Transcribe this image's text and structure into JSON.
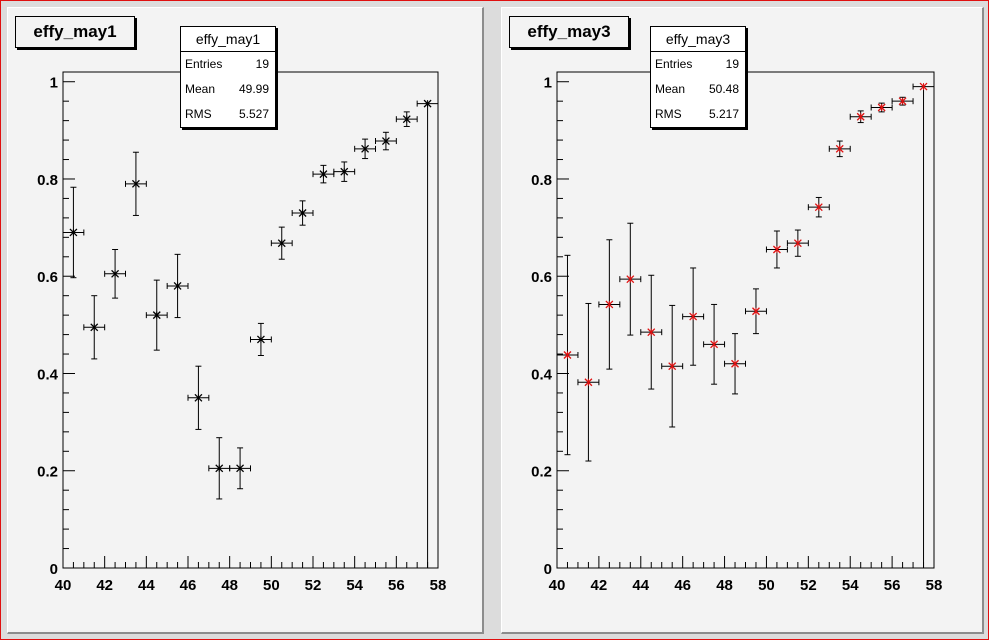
{
  "chart_data": [
    {
      "type": "scatter",
      "title": "effy_may1",
      "stats": {
        "title": "effy_may1",
        "rows": [
          {
            "key": "Entries",
            "value": "19"
          },
          {
            "key": "Mean",
            "value": "49.99"
          },
          {
            "key": "RMS",
            "value": "5.527"
          }
        ]
      },
      "xlim": [
        40,
        58
      ],
      "ylim": [
        0,
        1.02
      ],
      "x_ticks": [
        "40",
        "42",
        "44",
        "46",
        "48",
        "50",
        "52",
        "54",
        "56",
        "58"
      ],
      "y_ticks": [
        "0",
        "0.2",
        "0.4",
        "0.6",
        "0.8",
        "1"
      ],
      "marker_color": "#000000",
      "x_err": 0.5,
      "x": [
        40.5,
        41.5,
        42.5,
        43.5,
        44.5,
        45.5,
        46.5,
        47.5,
        48.5,
        49.5,
        50.5,
        51.5,
        52.5,
        53.5,
        54.5,
        55.5,
        56.5,
        57.5
      ],
      "y": [
        0.69,
        0.495,
        0.605,
        0.79,
        0.52,
        0.58,
        0.35,
        0.205,
        0.205,
        0.47,
        0.668,
        0.73,
        0.81,
        0.815,
        0.862,
        0.878,
        0.923,
        0.955
      ],
      "y_err": [
        0.093,
        0.065,
        0.05,
        0.065,
        0.072,
        0.065,
        0.065,
        0.063,
        0.042,
        0.033,
        0.033,
        0.025,
        0.018,
        0.02,
        0.02,
        0.018,
        0.015,
        0.0
      ]
    },
    {
      "type": "scatter",
      "title": "effy_may3",
      "stats": {
        "title": "effy_may3",
        "rows": [
          {
            "key": "Entries",
            "value": "19"
          },
          {
            "key": "Mean",
            "value": "50.48"
          },
          {
            "key": "RMS",
            "value": "5.217"
          }
        ]
      },
      "xlim": [
        40,
        58
      ],
      "ylim": [
        0,
        1.02
      ],
      "x_ticks": [
        "40",
        "42",
        "44",
        "46",
        "48",
        "50",
        "52",
        "54",
        "56",
        "58"
      ],
      "y_ticks": [
        "0",
        "0.2",
        "0.4",
        "0.6",
        "0.8",
        "1"
      ],
      "marker_color": "#e01010",
      "x_err": 0.5,
      "x": [
        40.5,
        41.5,
        42.5,
        43.5,
        44.5,
        45.5,
        46.5,
        47.5,
        48.5,
        49.5,
        50.5,
        51.5,
        52.5,
        53.5,
        54.5,
        55.5,
        56.5,
        57.5
      ],
      "y": [
        0.438,
        0.382,
        0.542,
        0.594,
        0.485,
        0.415,
        0.517,
        0.46,
        0.42,
        0.528,
        0.655,
        0.668,
        0.742,
        0.862,
        0.928,
        0.947,
        0.96,
        0.99
      ],
      "y_err": [
        0.205,
        0.162,
        0.133,
        0.115,
        0.117,
        0.125,
        0.1,
        0.082,
        0.062,
        0.046,
        0.038,
        0.027,
        0.02,
        0.016,
        0.012,
        0.009,
        0.008,
        0.0
      ]
    }
  ]
}
